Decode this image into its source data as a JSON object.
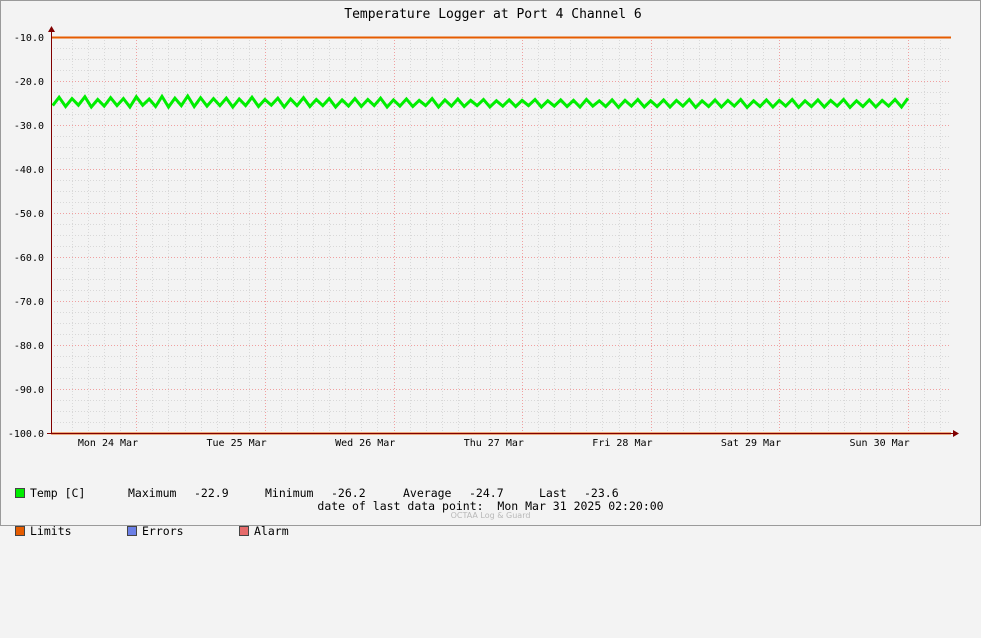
{
  "chart_data": {
    "type": "line",
    "title": "Temperature Logger at Port 4 Channel 6",
    "ylim": [
      -100,
      -10
    ],
    "yticks": [
      "-10.0",
      "-20.0",
      "-30.0",
      "-40.0",
      "-50.0",
      "-60.0",
      "-70.0",
      "-80.0",
      "-90.0",
      "-100.0"
    ],
    "x_tick_labels": [
      "Mon 24 Mar",
      "Tue 25 Mar",
      "Wed 26 Mar",
      "Thu 27 Mar",
      "Fri 28 Mar",
      "Sat 29 Mar",
      "Sun 30 Mar"
    ],
    "x_range_days": [
      0,
      7
    ],
    "grid": true,
    "series": [
      {
        "name": "Temp [C]",
        "color": "#00ee00",
        "band": [
          -26.2,
          -22.9
        ],
        "points": [
          [
            0.0,
            -24.8
          ],
          [
            0.05,
            -23.4
          ],
          [
            0.1,
            -25.9
          ],
          [
            0.15,
            -24.1
          ],
          [
            0.2,
            -25.6
          ],
          [
            0.25,
            -23.7
          ],
          [
            0.3,
            -25.8
          ],
          [
            0.35,
            -24.0
          ],
          [
            0.4,
            -25.5
          ],
          [
            0.45,
            -23.6
          ],
          [
            0.5,
            -25.9
          ],
          [
            0.55,
            -24.2
          ],
          [
            0.6,
            -25.7
          ],
          [
            0.65,
            -23.8
          ],
          [
            0.7,
            -25.6
          ],
          [
            0.75,
            -24.0
          ],
          [
            0.8,
            -25.9
          ],
          [
            0.85,
            -23.6
          ],
          [
            0.9,
            -25.5
          ],
          [
            0.95,
            -24.1
          ],
          [
            1.0,
            -25.8
          ],
          [
            1.05,
            -23.5
          ],
          [
            1.1,
            -25.9
          ],
          [
            1.15,
            -23.9
          ],
          [
            1.2,
            -25.6
          ],
          [
            1.25,
            -23.4
          ],
          [
            1.3,
            -25.8
          ],
          [
            1.35,
            -23.8
          ],
          [
            1.4,
            -25.7
          ],
          [
            1.45,
            -24.0
          ],
          [
            1.5,
            -25.6
          ],
          [
            1.55,
            -23.9
          ],
          [
            1.6,
            -25.9
          ],
          [
            1.65,
            -24.1
          ],
          [
            1.7,
            -25.6
          ],
          [
            1.75,
            -23.7
          ],
          [
            1.8,
            -25.8
          ],
          [
            1.85,
            -24.2
          ],
          [
            1.9,
            -25.5
          ],
          [
            1.95,
            -23.9
          ],
          [
            2.0,
            -25.9
          ],
          [
            2.05,
            -24.1
          ],
          [
            2.1,
            -25.6
          ],
          [
            2.15,
            -23.8
          ],
          [
            2.2,
            -25.8
          ],
          [
            2.25,
            -24.2
          ],
          [
            2.3,
            -25.6
          ],
          [
            2.35,
            -24.0
          ],
          [
            2.4,
            -25.9
          ],
          [
            2.45,
            -24.3
          ],
          [
            2.5,
            -25.7
          ],
          [
            2.55,
            -24.0
          ],
          [
            2.6,
            -25.8
          ],
          [
            2.65,
            -24.2
          ],
          [
            2.7,
            -25.6
          ],
          [
            2.75,
            -23.9
          ],
          [
            2.8,
            -25.9
          ],
          [
            2.85,
            -24.3
          ],
          [
            2.9,
            -25.7
          ],
          [
            2.95,
            -24.1
          ],
          [
            3.0,
            -25.8
          ],
          [
            3.05,
            -24.4
          ],
          [
            3.1,
            -25.6
          ],
          [
            3.15,
            -24.0
          ],
          [
            3.2,
            -25.9
          ],
          [
            3.25,
            -24.3
          ],
          [
            3.3,
            -25.7
          ],
          [
            3.35,
            -24.1
          ],
          [
            3.4,
            -25.8
          ],
          [
            3.45,
            -24.4
          ],
          [
            3.5,
            -25.6
          ],
          [
            3.55,
            -24.2
          ],
          [
            3.6,
            -25.9
          ],
          [
            3.65,
            -24.5
          ],
          [
            3.7,
            -25.7
          ],
          [
            3.75,
            -24.3
          ],
          [
            3.8,
            -25.8
          ],
          [
            3.85,
            -24.4
          ],
          [
            3.9,
            -25.6
          ],
          [
            3.95,
            -24.2
          ],
          [
            4.0,
            -25.9
          ],
          [
            4.05,
            -24.5
          ],
          [
            4.1,
            -25.7
          ],
          [
            4.15,
            -24.3
          ],
          [
            4.2,
            -25.8
          ],
          [
            4.25,
            -24.4
          ],
          [
            4.3,
            -25.9
          ],
          [
            4.35,
            -24.2
          ],
          [
            4.4,
            -25.7
          ],
          [
            4.45,
            -24.5
          ],
          [
            4.5,
            -25.8
          ],
          [
            4.55,
            -24.3
          ],
          [
            4.6,
            -26.0
          ],
          [
            4.65,
            -24.4
          ],
          [
            4.7,
            -25.7
          ],
          [
            4.75,
            -24.2
          ],
          [
            4.8,
            -25.9
          ],
          [
            4.85,
            -24.5
          ],
          [
            4.9,
            -25.8
          ],
          [
            4.95,
            -24.3
          ],
          [
            5.0,
            -25.9
          ],
          [
            5.05,
            -24.4
          ],
          [
            5.1,
            -25.7
          ],
          [
            5.15,
            -24.2
          ],
          [
            5.2,
            -26.0
          ],
          [
            5.25,
            -24.5
          ],
          [
            5.3,
            -25.8
          ],
          [
            5.35,
            -24.3
          ],
          [
            5.4,
            -25.9
          ],
          [
            5.45,
            -24.4
          ],
          [
            5.5,
            -25.7
          ],
          [
            5.55,
            -24.2
          ],
          [
            5.6,
            -26.0
          ],
          [
            5.65,
            -24.5
          ],
          [
            5.7,
            -25.8
          ],
          [
            5.75,
            -24.3
          ],
          [
            5.8,
            -25.9
          ],
          [
            5.85,
            -24.4
          ],
          [
            5.9,
            -25.7
          ],
          [
            5.95,
            -24.2
          ],
          [
            6.0,
            -26.0
          ],
          [
            6.05,
            -24.5
          ],
          [
            6.1,
            -25.8
          ],
          [
            6.15,
            -24.3
          ],
          [
            6.2,
            -25.9
          ],
          [
            6.25,
            -24.4
          ],
          [
            6.3,
            -25.7
          ],
          [
            6.35,
            -24.2
          ],
          [
            6.4,
            -26.0
          ],
          [
            6.45,
            -24.5
          ],
          [
            6.5,
            -25.8
          ],
          [
            6.55,
            -24.3
          ],
          [
            6.6,
            -25.9
          ],
          [
            6.65,
            -24.4
          ],
          [
            6.7,
            -25.7
          ],
          [
            6.75,
            -24.2
          ],
          [
            6.8,
            -25.9
          ],
          [
            6.85,
            -23.9
          ]
        ]
      },
      {
        "name": "Limits",
        "color": "#e65c00",
        "values": [
          -10.0,
          -100.0
        ]
      },
      {
        "name": "Errors",
        "color": "#6b7fe6"
      },
      {
        "name": "Alarm",
        "color": "#e66b6b"
      }
    ]
  },
  "stats": {
    "maximum_label": "Maximum",
    "maximum": "-22.9",
    "minimum_label": "Minimum",
    "minimum": "-26.2",
    "average_label": "Average",
    "average": "-24.7",
    "last_label": "Last",
    "last": "-23.6"
  },
  "footer": {
    "label": "date of last data point:",
    "value": "Mon Mar 31 2025 02:20:00"
  },
  "watermark": "OCTAA Log & Guard"
}
